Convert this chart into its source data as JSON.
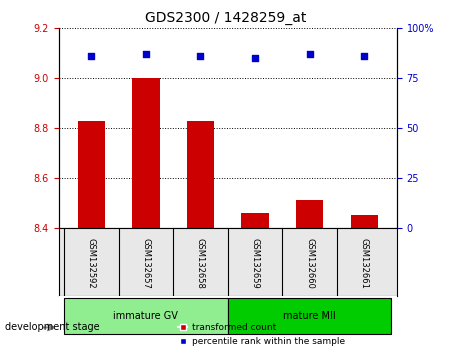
{
  "title": "GDS2300 / 1428259_at",
  "samples": [
    "GSM132592",
    "GSM132657",
    "GSM132658",
    "GSM132659",
    "GSM132660",
    "GSM132661"
  ],
  "transformed_counts": [
    8.83,
    9.0,
    8.83,
    8.46,
    8.51,
    8.45
  ],
  "percentile_ranks": [
    86,
    87,
    86,
    85,
    87,
    86
  ],
  "ylim_left": [
    8.4,
    9.2
  ],
  "ylim_right": [
    0,
    100
  ],
  "yticks_left": [
    8.4,
    8.6,
    8.8,
    9.0,
    9.2
  ],
  "yticks_right": [
    0,
    25,
    50,
    75,
    100
  ],
  "groups": [
    {
      "label": "immature GV",
      "indices": [
        0,
        1,
        2
      ],
      "color": "#90EE90"
    },
    {
      "label": "mature MII",
      "indices": [
        3,
        4,
        5
      ],
      "color": "#00CC00"
    }
  ],
  "bar_color": "#CC0000",
  "dot_color": "#0000CC",
  "bar_bottom": 8.4,
  "bar_width": 0.5,
  "grid_color": "#000000",
  "bg_color": "#E8E8E8",
  "legend_bar_label": "transformed count",
  "legend_dot_label": "percentile rank within the sample",
  "xlabel_left": "development stage",
  "left_axis_color": "#CC0000",
  "right_axis_color": "#0000CC"
}
